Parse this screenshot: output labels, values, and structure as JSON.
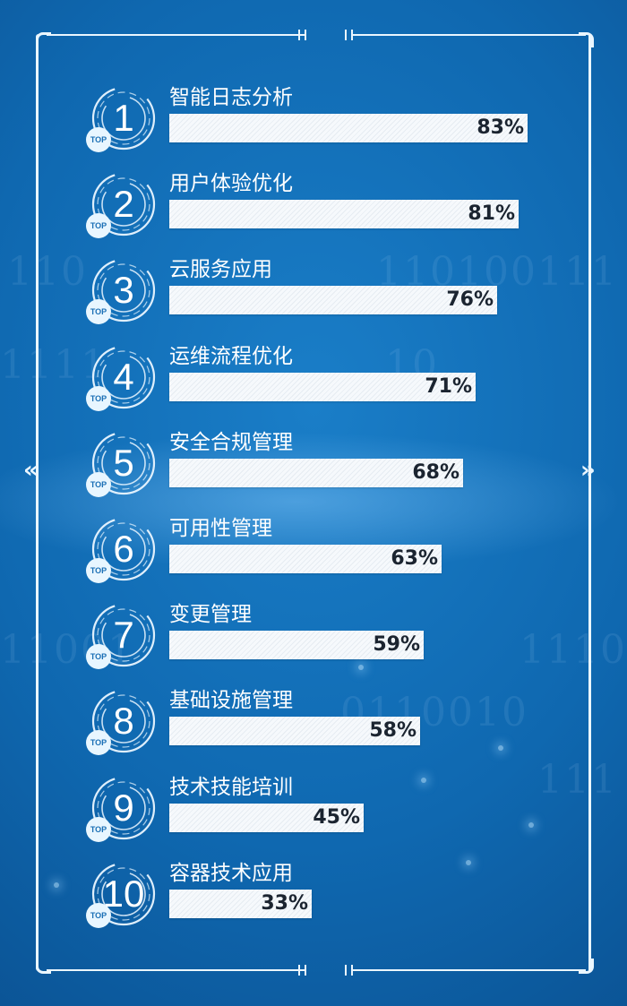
{
  "chart_data": {
    "type": "bar",
    "orientation": "horizontal",
    "rank_tag": "TOP",
    "categories": [
      "智能日志分析",
      "用户体验优化",
      "云服务应用",
      "运维流程优化",
      "安全合规管理",
      "可用性管理",
      "变更管理",
      "基础设施管理",
      "技术技能培训",
      "容器技术应用"
    ],
    "ranks": [
      "1",
      "2",
      "3",
      "4",
      "5",
      "6",
      "7",
      "8",
      "9",
      "10"
    ],
    "values": [
      83,
      81,
      76,
      71,
      68,
      63,
      59,
      58,
      45,
      33
    ],
    "value_labels": [
      "83%",
      "81%",
      "76%",
      "71%",
      "68%",
      "63%",
      "59%",
      "58%",
      "45%",
      "33%"
    ],
    "xlim": [
      0,
      100
    ],
    "title": "",
    "xlabel": "",
    "ylabel": "",
    "grid": false,
    "legend": "none",
    "colors": {
      "background": "#1273bb",
      "bar": "#f6f9fc",
      "text": "#ffffff",
      "value_text": "#1b2430",
      "frame": "#eaf6ff"
    }
  },
  "navigation": {
    "prev_arrow": "«",
    "next_arrow": "»"
  }
}
